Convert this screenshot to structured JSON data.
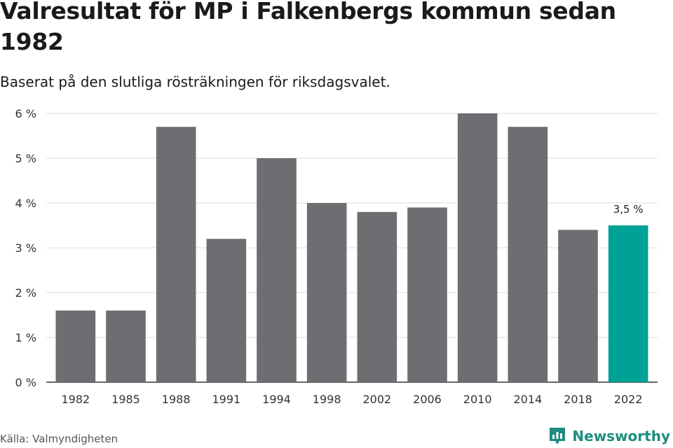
{
  "title": "Valresultat för MP i Falkenbergs kommun sedan 1982",
  "subtitle": "Baserat på den slutliga rösträkningen för riksdagsvalet.",
  "source": "Källa: Valmyndigheten",
  "brand": {
    "name": "Newsworthy",
    "icon": "newsworthy-logo-icon"
  },
  "colors": {
    "bar": "#6e6d72",
    "highlight": "#00a196",
    "grid": "#dddddd",
    "axis": "#333333"
  },
  "chart_data": {
    "type": "bar",
    "categories": [
      "1982",
      "1985",
      "1988",
      "1991",
      "1994",
      "1998",
      "2002",
      "2006",
      "2010",
      "2014",
      "2018",
      "2022"
    ],
    "values": [
      1.6,
      1.6,
      5.7,
      3.2,
      5.0,
      4.0,
      3.8,
      3.9,
      6.0,
      5.7,
      3.4,
      3.5
    ],
    "ylim": [
      0,
      6
    ],
    "yticks": [
      0,
      1,
      2,
      3,
      4,
      5,
      6
    ],
    "ytick_labels": [
      "0 %",
      "1 %",
      "2 %",
      "3 %",
      "4 %",
      "5 %",
      "6 %"
    ],
    "highlight_index": 11,
    "data_labels": [
      {
        "index": 11,
        "text": "3,5 %"
      }
    ],
    "grid": true,
    "legend": "none"
  }
}
